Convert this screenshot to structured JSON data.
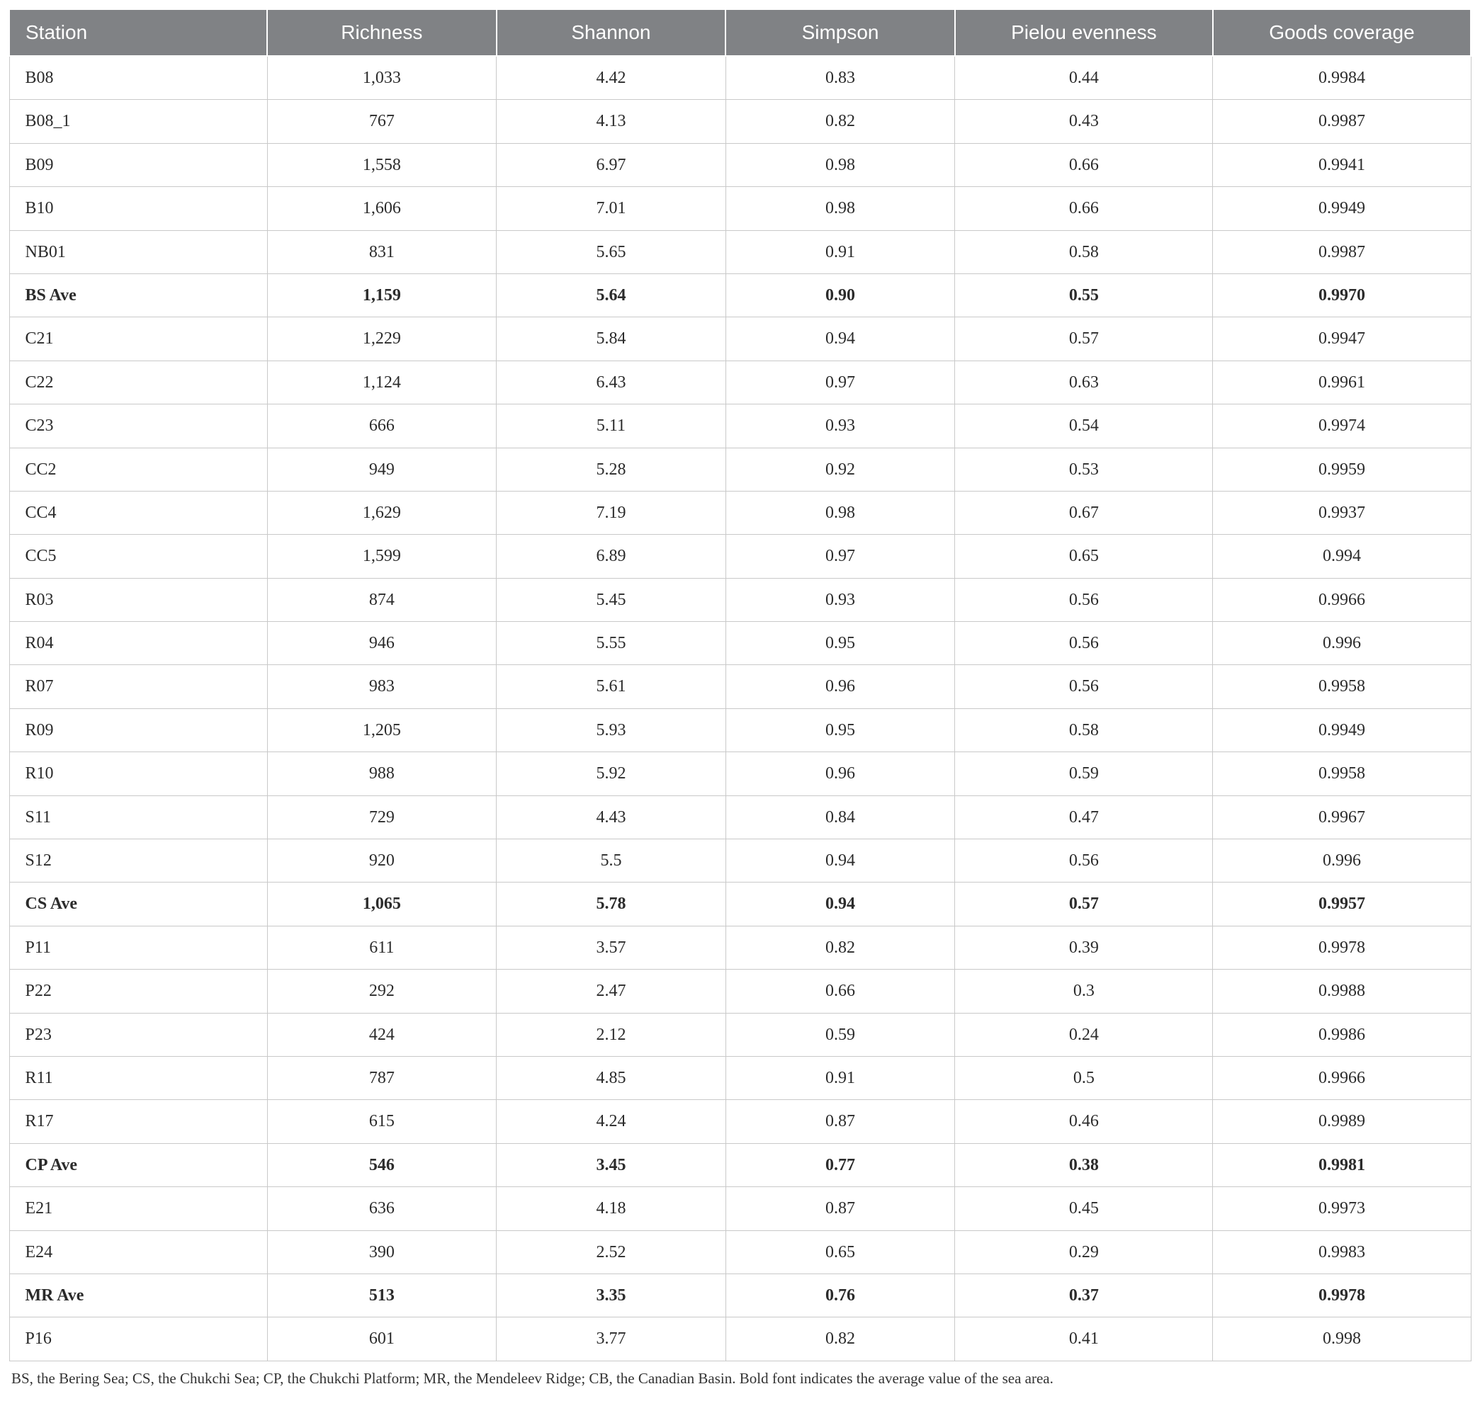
{
  "table": {
    "columns": [
      "Station",
      "Richness",
      "Shannon",
      "Simpson",
      "Pielou evenness",
      "Goods coverage"
    ],
    "rows": [
      {
        "cells": [
          "B08",
          "1,033",
          "4.42",
          "0.83",
          "0.44",
          "0.9984"
        ],
        "bold": false
      },
      {
        "cells": [
          "B08_1",
          "767",
          "4.13",
          "0.82",
          "0.43",
          "0.9987"
        ],
        "bold": false
      },
      {
        "cells": [
          "B09",
          "1,558",
          "6.97",
          "0.98",
          "0.66",
          "0.9941"
        ],
        "bold": false
      },
      {
        "cells": [
          "B10",
          "1,606",
          "7.01",
          "0.98",
          "0.66",
          "0.9949"
        ],
        "bold": false
      },
      {
        "cells": [
          "NB01",
          "831",
          "5.65",
          "0.91",
          "0.58",
          "0.9987"
        ],
        "bold": false
      },
      {
        "cells": [
          "BS Ave",
          "1,159",
          "5.64",
          "0.90",
          "0.55",
          "0.9970"
        ],
        "bold": true
      },
      {
        "cells": [
          "C21",
          "1,229",
          "5.84",
          "0.94",
          "0.57",
          "0.9947"
        ],
        "bold": false
      },
      {
        "cells": [
          "C22",
          "1,124",
          "6.43",
          "0.97",
          "0.63",
          "0.9961"
        ],
        "bold": false
      },
      {
        "cells": [
          "C23",
          "666",
          "5.11",
          "0.93",
          "0.54",
          "0.9974"
        ],
        "bold": false
      },
      {
        "cells": [
          "CC2",
          "949",
          "5.28",
          "0.92",
          "0.53",
          "0.9959"
        ],
        "bold": false
      },
      {
        "cells": [
          "CC4",
          "1,629",
          "7.19",
          "0.98",
          "0.67",
          "0.9937"
        ],
        "bold": false
      },
      {
        "cells": [
          "CC5",
          "1,599",
          "6.89",
          "0.97",
          "0.65",
          "0.994"
        ],
        "bold": false
      },
      {
        "cells": [
          "R03",
          "874",
          "5.45",
          "0.93",
          "0.56",
          "0.9966"
        ],
        "bold": false
      },
      {
        "cells": [
          "R04",
          "946",
          "5.55",
          "0.95",
          "0.56",
          "0.996"
        ],
        "bold": false
      },
      {
        "cells": [
          "R07",
          "983",
          "5.61",
          "0.96",
          "0.56",
          "0.9958"
        ],
        "bold": false
      },
      {
        "cells": [
          "R09",
          "1,205",
          "5.93",
          "0.95",
          "0.58",
          "0.9949"
        ],
        "bold": false
      },
      {
        "cells": [
          "R10",
          "988",
          "5.92",
          "0.96",
          "0.59",
          "0.9958"
        ],
        "bold": false
      },
      {
        "cells": [
          "S11",
          "729",
          "4.43",
          "0.84",
          "0.47",
          "0.9967"
        ],
        "bold": false
      },
      {
        "cells": [
          "S12",
          "920",
          "5.5",
          "0.94",
          "0.56",
          "0.996"
        ],
        "bold": false
      },
      {
        "cells": [
          "CS Ave",
          "1,065",
          "5.78",
          "0.94",
          "0.57",
          "0.9957"
        ],
        "bold": true
      },
      {
        "cells": [
          "P11",
          "611",
          "3.57",
          "0.82",
          "0.39",
          "0.9978"
        ],
        "bold": false
      },
      {
        "cells": [
          "P22",
          "292",
          "2.47",
          "0.66",
          "0.3",
          "0.9988"
        ],
        "bold": false
      },
      {
        "cells": [
          "P23",
          "424",
          "2.12",
          "0.59",
          "0.24",
          "0.9986"
        ],
        "bold": false
      },
      {
        "cells": [
          "R11",
          "787",
          "4.85",
          "0.91",
          "0.5",
          "0.9966"
        ],
        "bold": false
      },
      {
        "cells": [
          "R17",
          "615",
          "4.24",
          "0.87",
          "0.46",
          "0.9989"
        ],
        "bold": false
      },
      {
        "cells": [
          "CP Ave",
          "546",
          "3.45",
          "0.77",
          "0.38",
          "0.9981"
        ],
        "bold": true
      },
      {
        "cells": [
          "E21",
          "636",
          "4.18",
          "0.87",
          "0.45",
          "0.9973"
        ],
        "bold": false
      },
      {
        "cells": [
          "E24",
          "390",
          "2.52",
          "0.65",
          "0.29",
          "0.9983"
        ],
        "bold": false
      },
      {
        "cells": [
          "MR Ave",
          "513",
          "3.35",
          "0.76",
          "0.37",
          "0.9978"
        ],
        "bold": true
      },
      {
        "cells": [
          "P16",
          "601",
          "3.77",
          "0.82",
          "0.41",
          "0.998"
        ],
        "bold": false
      }
    ],
    "column_widths_pct": [
      18,
      16,
      16,
      16,
      18,
      18
    ],
    "header_bg": "#808285",
    "header_fg": "#ffffff",
    "border_color": "#c9c9c9",
    "header_font": "sans-serif",
    "body_font": "serif",
    "header_fontsize": 28,
    "body_fontsize": 24
  },
  "footnote": "BS, the Bering Sea; CS, the Chukchi Sea; CP, the Chukchi Platform; MR, the Mendeleev Ridge; CB, the Canadian Basin. Bold font indicates the average value of the sea area."
}
